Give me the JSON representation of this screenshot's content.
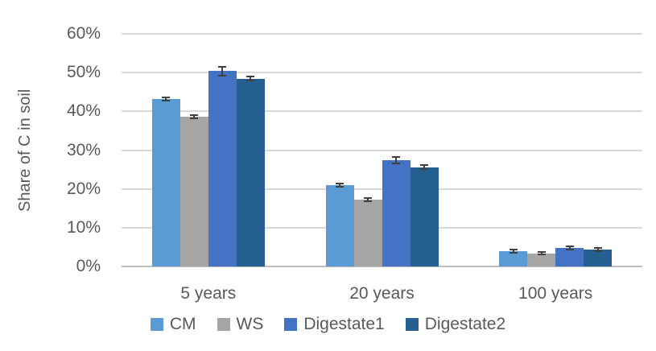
{
  "chart_data": {
    "type": "bar",
    "title": "",
    "xlabel": "",
    "ylabel": "Share of C in soil",
    "ylim": [
      0,
      60
    ],
    "grid": true,
    "legend_position": "bottom",
    "yticks": [
      {
        "value": 0,
        "label": "0%"
      },
      {
        "value": 10,
        "label": "10%"
      },
      {
        "value": 20,
        "label": "20%"
      },
      {
        "value": 30,
        "label": "30%"
      },
      {
        "value": 40,
        "label": "40%"
      },
      {
        "value": 50,
        "label": "50%"
      },
      {
        "value": 60,
        "label": "60%"
      }
    ],
    "categories": [
      "5 years",
      "20 years",
      "100 years"
    ],
    "series": [
      {
        "name": "CM",
        "color": "#5B9BD5",
        "values": [
          43.2,
          20.9,
          3.9
        ],
        "errors": [
          0.5,
          0.4,
          0.4
        ]
      },
      {
        "name": "WS",
        "color": "#A5A5A5",
        "values": [
          38.6,
          17.3,
          3.4
        ],
        "errors": [
          0.5,
          0.4,
          0.3
        ]
      },
      {
        "name": "Digestate1",
        "color": "#4472C4",
        "values": [
          50.4,
          27.4,
          4.7
        ],
        "errors": [
          1.1,
          0.9,
          0.4
        ]
      },
      {
        "name": "Digestate2",
        "color": "#255E91",
        "values": [
          48.4,
          25.6,
          4.3
        ],
        "errors": [
          0.5,
          0.5,
          0.4
        ]
      }
    ],
    "colors": {
      "gridline": "#D9D9D9",
      "axis_line": "#BFBFBF",
      "error_bar": "#404040",
      "text": "#595959"
    }
  }
}
